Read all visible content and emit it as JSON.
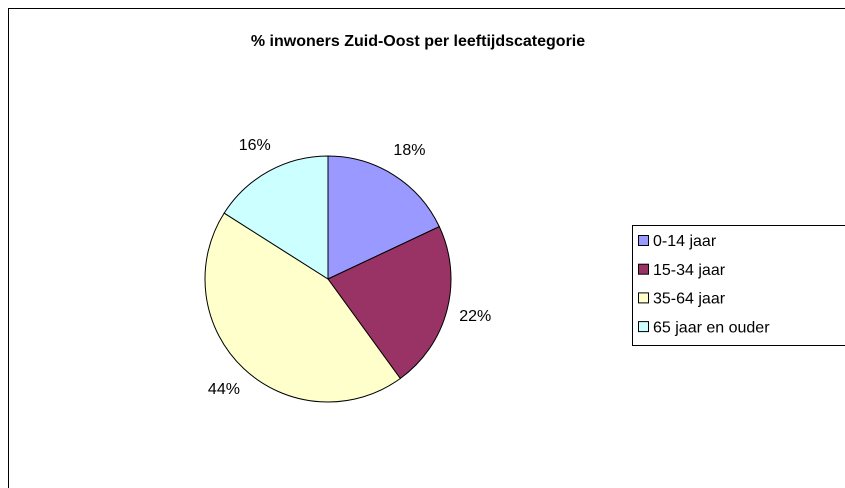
{
  "chart_data": {
    "type": "pie",
    "title": "% inwoners Zuid-Oost per leeftijdscategorie",
    "categories": [
      "0-14 jaar",
      "15-34 jaar",
      "35-64 jaar",
      "65 jaar en ouder"
    ],
    "values": [
      18,
      22,
      44,
      16
    ],
    "value_labels": [
      "18%",
      "22%",
      "44%",
      "16%"
    ],
    "colors": [
      "#9999ff",
      "#993366",
      "#ffffcc",
      "#ccffff"
    ],
    "legend": "right"
  }
}
